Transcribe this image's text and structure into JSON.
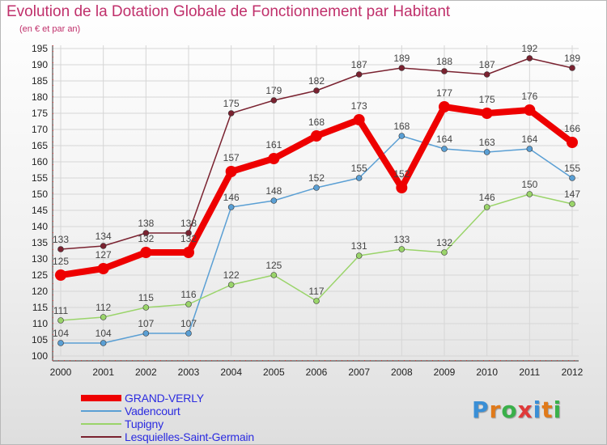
{
  "title": "Evolution de la Dotation Globale de Fonctionnement par Habitant",
  "subtitle": "(en € et par an)",
  "logo": {
    "text": "Proxiti",
    "letters": [
      "P",
      "r",
      "o",
      "x",
      "i",
      "t",
      "i"
    ],
    "colors": [
      "#3a8fd6",
      "#e07a1a",
      "#3ab04a",
      "#e03a3a",
      "#3a8fd6",
      "#e07a1a",
      "#3ab04a"
    ]
  },
  "chart_data": {
    "type": "line",
    "title": "Evolution de la Dotation Globale de Fonctionnement par Habitant",
    "subtitle": "(en € et par an)",
    "x": [
      "2000",
      "2001",
      "2002",
      "2003",
      "2004",
      "2005",
      "2006",
      "2007",
      "2008",
      "2009",
      "2010",
      "2011",
      "2012"
    ],
    "ylim": [
      100,
      195
    ],
    "yticks": [
      100,
      105,
      110,
      115,
      120,
      125,
      130,
      135,
      140,
      145,
      150,
      155,
      160,
      165,
      170,
      175,
      180,
      185,
      190,
      195
    ],
    "grid": true,
    "legend_position": "bottom-left",
    "series": [
      {
        "name": "GRAND-VERLY",
        "color": "#ee0000",
        "width": 8,
        "marker": 7,
        "values": [
          125,
          127,
          132,
          132,
          157,
          161,
          168,
          173,
          152,
          177,
          175,
          176,
          166
        ]
      },
      {
        "name": "Vadencourt",
        "color": "#5a9fd4",
        "width": 1.5,
        "marker": 3.5,
        "values": [
          104,
          104,
          107,
          107,
          146,
          148,
          152,
          155,
          168,
          164,
          163,
          164,
          155
        ]
      },
      {
        "name": "Tupigny",
        "color": "#9ad46a",
        "width": 1.5,
        "marker": 3.5,
        "values": [
          111,
          112,
          115,
          116,
          122,
          125,
          117,
          131,
          133,
          132,
          146,
          150,
          147
        ]
      },
      {
        "name": "Lesquielles-Saint-Germain",
        "color": "#7a2230",
        "width": 1.5,
        "marker": 3.5,
        "values": [
          133,
          134,
          138,
          138,
          175,
          179,
          182,
          187,
          189,
          188,
          187,
          192,
          189
        ]
      }
    ]
  }
}
